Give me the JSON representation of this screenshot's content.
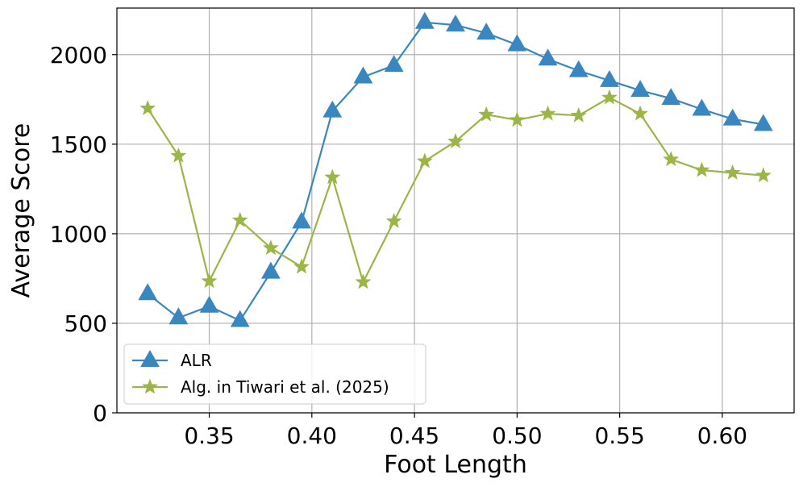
{
  "chart_data": {
    "type": "line",
    "xlabel": "Foot Length",
    "ylabel": "Average Score",
    "xlim": [
      0.305,
      0.635
    ],
    "ylim": [
      0,
      2260
    ],
    "xticks": [
      0.35,
      0.4,
      0.45,
      0.5,
      0.55,
      0.6
    ],
    "xtick_labels": [
      "0.35",
      "0.40",
      "0.45",
      "0.50",
      "0.55",
      "0.60"
    ],
    "yticks": [
      0,
      500,
      1000,
      1500,
      2000
    ],
    "ytick_labels": [
      "0",
      "500",
      "1000",
      "1500",
      "2000"
    ],
    "grid": true,
    "legend_position": "lower-left",
    "x": [
      0.32,
      0.335,
      0.35,
      0.365,
      0.38,
      0.395,
      0.41,
      0.425,
      0.44,
      0.455,
      0.47,
      0.485,
      0.5,
      0.515,
      0.53,
      0.545,
      0.56,
      0.575,
      0.59,
      0.605,
      0.62
    ],
    "series": [
      {
        "name": "ALR",
        "color": "#3a87c0",
        "marker": "triangle",
        "values": [
          665,
          530,
          595,
          515,
          785,
          1065,
          1685,
          1875,
          1940,
          2180,
          2165,
          2120,
          2055,
          1975,
          1910,
          1855,
          1800,
          1755,
          1695,
          1640,
          1610
        ]
      },
      {
        "name": "Alg. in Tiwari et al. (2025)",
        "color": "#9bb548",
        "marker": "star",
        "values": [
          1700,
          1435,
          735,
          1075,
          920,
          815,
          1315,
          730,
          1070,
          1405,
          1515,
          1665,
          1635,
          1670,
          1660,
          1760,
          1670,
          1415,
          1355,
          1340,
          1325
        ]
      }
    ]
  }
}
